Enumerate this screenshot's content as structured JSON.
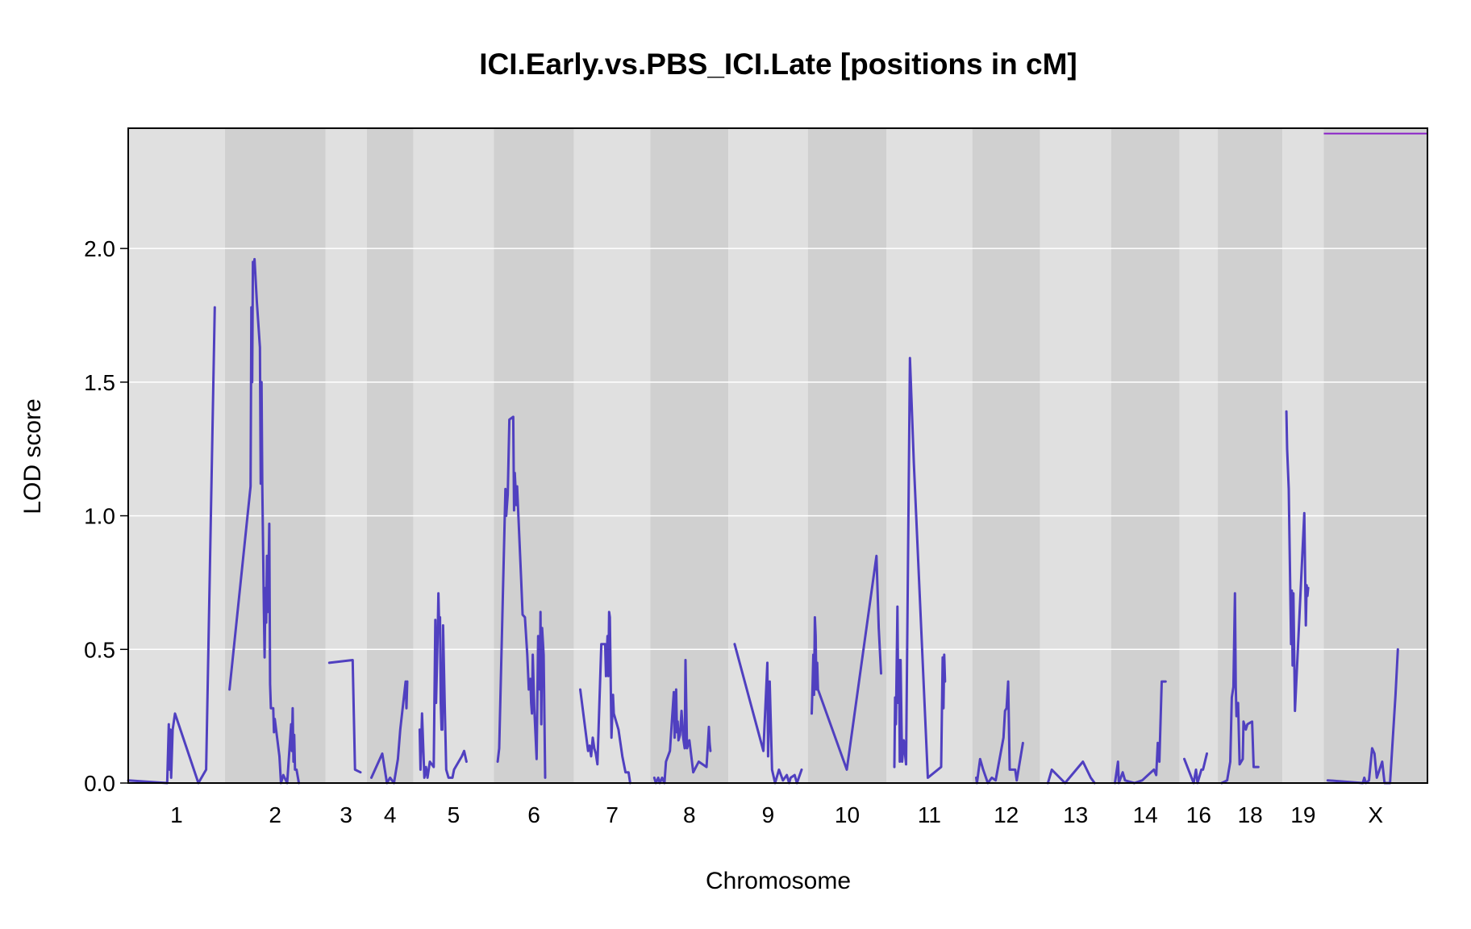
{
  "chart_data": {
    "type": "line",
    "title": "ICI.Early.vs.PBS_ICI.Late [positions in cM]",
    "xlabel": "Chromosome",
    "ylabel": "LOD score",
    "ylim": [
      0,
      2.45
    ],
    "yticks": [
      "0.0",
      "0.5",
      "1.0",
      "1.5",
      "2.0"
    ],
    "grid": "horizontal",
    "colors": {
      "line": "#5040c0",
      "threshold": "#8a20c8",
      "band_light": "#e0e0e0",
      "band_dark": "#d0d0d0",
      "grid": "#ffffff"
    },
    "threshold": {
      "chromosome": "X",
      "lod": 2.43
    },
    "chromosomes": [
      {
        "label": "1",
        "start": 0,
        "end": 124,
        "points": [
          [
            0,
            0.01
          ],
          [
            50,
            0.0
          ],
          [
            52,
            0.22
          ],
          [
            53,
            0.05
          ],
          [
            54,
            0.2
          ],
          [
            55,
            0.02
          ],
          [
            57,
            0.2
          ],
          [
            60,
            0.26
          ],
          [
            90,
            0.0
          ],
          [
            100,
            0.05
          ],
          [
            111,
            1.78
          ]
        ]
      },
      {
        "label": "2",
        "start": 124,
        "end": 253,
        "points": [
          [
            6,
            0.35
          ],
          [
            33,
            1.11
          ],
          [
            34,
            1.78
          ],
          [
            35,
            1.5
          ],
          [
            36,
            1.95
          ],
          [
            37,
            1.91
          ],
          [
            38,
            1.96
          ],
          [
            41,
            1.8
          ],
          [
            45,
            1.63
          ],
          [
            46,
            1.12
          ],
          [
            47,
            1.5
          ],
          [
            48,
            1.12
          ],
          [
            50,
            0.65
          ],
          [
            51,
            0.47
          ],
          [
            52,
            0.73
          ],
          [
            53,
            0.6
          ],
          [
            54,
            0.85
          ],
          [
            55,
            0.64
          ],
          [
            56,
            0.8
          ],
          [
            57,
            0.97
          ],
          [
            58,
            0.37
          ],
          [
            59,
            0.28
          ],
          [
            62,
            0.28
          ],
          [
            63,
            0.19
          ],
          [
            64,
            0.24
          ],
          [
            70,
            0.1
          ],
          [
            72,
            0.0
          ],
          [
            75,
            0.03
          ],
          [
            80,
            0.0
          ],
          [
            85,
            0.22
          ],
          [
            86,
            0.12
          ],
          [
            87,
            0.28
          ],
          [
            88,
            0.08
          ],
          [
            89,
            0.18
          ],
          [
            90,
            0.05
          ],
          [
            92,
            0.05
          ],
          [
            95,
            0.0
          ]
        ]
      },
      {
        "label": "3",
        "start": 253,
        "end": 306,
        "points": [
          [
            5,
            0.45
          ],
          [
            35,
            0.46
          ],
          [
            38,
            0.05
          ],
          [
            45,
            0.04
          ]
        ]
      },
      {
        "label": "4",
        "start": 306,
        "end": 366,
        "points": [
          [
            6,
            0.02
          ],
          [
            20,
            0.11
          ],
          [
            26,
            0.0
          ],
          [
            30,
            0.02
          ],
          [
            35,
            0.0
          ],
          [
            40,
            0.09
          ],
          [
            43,
            0.2
          ],
          [
            50,
            0.38
          ],
          [
            51,
            0.28
          ],
          [
            52,
            0.38
          ]
        ]
      },
      {
        "label": "5",
        "start": 366,
        "end": 469,
        "points": [
          [
            8,
            0.2
          ],
          [
            9,
            0.05
          ],
          [
            11,
            0.26
          ],
          [
            14,
            0.02
          ],
          [
            16,
            0.06
          ],
          [
            18,
            0.02
          ],
          [
            21,
            0.08
          ],
          [
            26,
            0.06
          ],
          [
            28,
            0.61
          ],
          [
            29,
            0.3
          ],
          [
            31,
            0.55
          ],
          [
            32,
            0.71
          ],
          [
            33,
            0.58
          ],
          [
            34,
            0.62
          ],
          [
            35,
            0.3
          ],
          [
            36,
            0.2
          ],
          [
            37,
            0.2
          ],
          [
            38,
            0.59
          ],
          [
            40,
            0.3
          ],
          [
            42,
            0.05
          ],
          [
            45,
            0.02
          ],
          [
            50,
            0.02
          ],
          [
            52,
            0.05
          ],
          [
            62,
            0.1
          ],
          [
            65,
            0.12
          ],
          [
            68,
            0.08
          ]
        ]
      },
      {
        "label": "6",
        "start": 469,
        "end": 572,
        "points": [
          [
            5,
            0.08
          ],
          [
            7,
            0.13
          ],
          [
            15,
            1.1
          ],
          [
            16,
            1.0
          ],
          [
            18,
            1.08
          ],
          [
            20,
            1.36
          ],
          [
            25,
            1.37
          ],
          [
            26,
            1.02
          ],
          [
            27,
            1.16
          ],
          [
            29,
            1.04
          ],
          [
            30,
            1.11
          ],
          [
            35,
            0.77
          ],
          [
            37,
            0.63
          ],
          [
            40,
            0.62
          ],
          [
            43,
            0.48
          ],
          [
            45,
            0.35
          ],
          [
            47,
            0.39
          ],
          [
            48,
            0.3
          ],
          [
            49,
            0.26
          ],
          [
            50,
            0.48
          ],
          [
            52,
            0.28
          ],
          [
            55,
            0.09
          ],
          [
            57,
            0.55
          ],
          [
            59,
            0.35
          ],
          [
            60,
            0.64
          ],
          [
            61,
            0.22
          ],
          [
            62,
            0.58
          ],
          [
            64,
            0.48
          ],
          [
            66,
            0.02
          ]
        ]
      },
      {
        "label": "7",
        "start": 572,
        "end": 670,
        "points": [
          [
            8,
            0.35
          ],
          [
            18,
            0.12
          ],
          [
            20,
            0.14
          ],
          [
            22,
            0.1
          ],
          [
            24,
            0.17
          ],
          [
            26,
            0.13
          ],
          [
            28,
            0.11
          ],
          [
            30,
            0.07
          ],
          [
            35,
            0.52
          ],
          [
            40,
            0.52
          ],
          [
            41,
            0.4
          ],
          [
            43,
            0.55
          ],
          [
            44,
            0.4
          ],
          [
            45,
            0.64
          ],
          [
            46,
            0.62
          ],
          [
            48,
            0.17
          ],
          [
            50,
            0.33
          ],
          [
            51,
            0.26
          ],
          [
            57,
            0.2
          ],
          [
            62,
            0.1
          ],
          [
            66,
            0.04
          ],
          [
            70,
            0.04
          ],
          [
            72,
            0.0
          ]
        ]
      },
      {
        "label": "8",
        "start": 670,
        "end": 770,
        "points": [
          [
            5,
            0.02
          ],
          [
            7,
            0.0
          ],
          [
            10,
            0.02
          ],
          [
            12,
            0.0
          ],
          [
            15,
            0.02
          ],
          [
            18,
            0.0
          ],
          [
            20,
            0.08
          ],
          [
            25,
            0.12
          ],
          [
            30,
            0.34
          ],
          [
            31,
            0.17
          ],
          [
            33,
            0.35
          ],
          [
            34,
            0.19
          ],
          [
            35,
            0.23
          ],
          [
            36,
            0.16
          ],
          [
            38,
            0.18
          ],
          [
            40,
            0.27
          ],
          [
            42,
            0.17
          ],
          [
            44,
            0.13
          ],
          [
            45,
            0.46
          ],
          [
            47,
            0.13
          ],
          [
            50,
            0.16
          ],
          [
            55,
            0.04
          ],
          [
            62,
            0.08
          ],
          [
            72,
            0.06
          ],
          [
            75,
            0.21
          ],
          [
            76,
            0.15
          ],
          [
            77,
            0.12
          ]
        ]
      },
      {
        "label": "9",
        "start": 770,
        "end": 872,
        "points": [
          [
            8,
            0.52
          ],
          [
            45,
            0.12
          ],
          [
            50,
            0.45
          ],
          [
            51,
            0.1
          ],
          [
            53,
            0.38
          ],
          [
            56,
            0.05
          ],
          [
            60,
            0.0
          ],
          [
            65,
            0.05
          ],
          [
            70,
            0.01
          ],
          [
            75,
            0.03
          ],
          [
            78,
            0.0
          ],
          [
            80,
            0.02
          ],
          [
            85,
            0.03
          ],
          [
            88,
            0.0
          ],
          [
            94,
            0.05
          ]
        ]
      },
      {
        "label": "10",
        "start": 872,
        "end": 973,
        "points": [
          [
            5,
            0.26
          ],
          [
            6,
            0.36
          ],
          [
            7,
            0.48
          ],
          [
            8,
            0.33
          ],
          [
            9,
            0.62
          ],
          [
            10,
            0.55
          ],
          [
            11,
            0.35
          ],
          [
            12,
            0.45
          ],
          [
            13,
            0.35
          ],
          [
            50,
            0.05
          ],
          [
            88,
            0.85
          ],
          [
            91,
            0.58
          ],
          [
            94,
            0.41
          ]
        ]
      },
      {
        "label": "11",
        "start": 973,
        "end": 1083,
        "points": [
          [
            10,
            0.06
          ],
          [
            11,
            0.32
          ],
          [
            12,
            0.22
          ],
          [
            14,
            0.66
          ],
          [
            15,
            0.3
          ],
          [
            16,
            0.46
          ],
          [
            17,
            0.08
          ],
          [
            18,
            0.46
          ],
          [
            19,
            0.25
          ],
          [
            20,
            0.08
          ],
          [
            22,
            0.16
          ],
          [
            25,
            0.07
          ],
          [
            30,
            1.59
          ],
          [
            35,
            1.2
          ],
          [
            53,
            0.02
          ],
          [
            70,
            0.06
          ],
          [
            72,
            0.47
          ],
          [
            73,
            0.28
          ],
          [
            74,
            0.48
          ],
          [
            75,
            0.38
          ]
        ]
      },
      {
        "label": "12",
        "start": 1083,
        "end": 1170,
        "points": [
          [
            5,
            0.02
          ],
          [
            6,
            0.0
          ],
          [
            10,
            0.09
          ],
          [
            14,
            0.05
          ],
          [
            20,
            0.0
          ],
          [
            25,
            0.02
          ],
          [
            30,
            0.01
          ],
          [
            40,
            0.17
          ],
          [
            42,
            0.27
          ],
          [
            44,
            0.28
          ],
          [
            46,
            0.38
          ],
          [
            48,
            0.05
          ],
          [
            52,
            0.05
          ],
          [
            55,
            0.05
          ],
          [
            57,
            0.01
          ],
          [
            65,
            0.15
          ]
        ]
      },
      {
        "label": "13",
        "start": 1170,
        "end": 1261,
        "points": [
          [
            10,
            0.0
          ],
          [
            15,
            0.05
          ],
          [
            32,
            0.0
          ],
          [
            55,
            0.08
          ],
          [
            65,
            0.02
          ],
          [
            70,
            0.0
          ]
        ]
      },
      {
        "label": "14",
        "start": 1261,
        "end": 1349,
        "points": [
          [
            5,
            0.0
          ],
          [
            9,
            0.08
          ],
          [
            10,
            0.0
          ],
          [
            15,
            0.04
          ],
          [
            18,
            0.01
          ],
          [
            30,
            0.0
          ],
          [
            40,
            0.01
          ],
          [
            55,
            0.05
          ],
          [
            58,
            0.03
          ],
          [
            60,
            0.15
          ],
          [
            62,
            0.08
          ],
          [
            65,
            0.38
          ],
          [
            70,
            0.38
          ]
        ]
      },
      {
        "label": "16",
        "start": 1349,
        "end": 1398,
        "points": [
          [
            6,
            0.09
          ],
          [
            18,
            0.0
          ],
          [
            21,
            0.05
          ],
          [
            23,
            0.0
          ],
          [
            28,
            0.05
          ],
          [
            30,
            0.05
          ],
          [
            35,
            0.11
          ]
        ]
      },
      {
        "label": "18",
        "start": 1398,
        "end": 1481,
        "points": [
          [
            5,
            0.0
          ],
          [
            12,
            0.01
          ],
          [
            16,
            0.08
          ],
          [
            18,
            0.32
          ],
          [
            20,
            0.36
          ],
          [
            22,
            0.71
          ],
          [
            23,
            0.36
          ],
          [
            24,
            0.25
          ],
          [
            26,
            0.3
          ],
          [
            28,
            0.07
          ],
          [
            32,
            0.09
          ],
          [
            33,
            0.23
          ],
          [
            36,
            0.2
          ],
          [
            38,
            0.22
          ],
          [
            44,
            0.23
          ],
          [
            46,
            0.06
          ],
          [
            52,
            0.06
          ]
        ]
      },
      {
        "label": "19",
        "start": 1481,
        "end": 1534,
        "points": [
          [
            5,
            1.39
          ],
          [
            6,
            1.25
          ],
          [
            8,
            1.1
          ],
          [
            10,
            0.72
          ],
          [
            11,
            0.52
          ],
          [
            12,
            0.72
          ],
          [
            13,
            0.44
          ],
          [
            14,
            0.71
          ],
          [
            16,
            0.27
          ],
          [
            28,
            1.01
          ],
          [
            30,
            0.59
          ],
          [
            31,
            0.74
          ],
          [
            32,
            0.7
          ],
          [
            33,
            0.73
          ]
        ]
      },
      {
        "label": "X",
        "start": 1534,
        "end": 1667,
        "points": [
          [
            5,
            0.01
          ],
          [
            50,
            0.0
          ],
          [
            52,
            0.02
          ],
          [
            54,
            0.0
          ],
          [
            58,
            0.01
          ],
          [
            62,
            0.13
          ],
          [
            65,
            0.11
          ],
          [
            68,
            0.02
          ],
          [
            75,
            0.08
          ],
          [
            78,
            0.0
          ],
          [
            85,
            0.0
          ],
          [
            92,
            0.33
          ],
          [
            95,
            0.5
          ]
        ]
      }
    ]
  }
}
